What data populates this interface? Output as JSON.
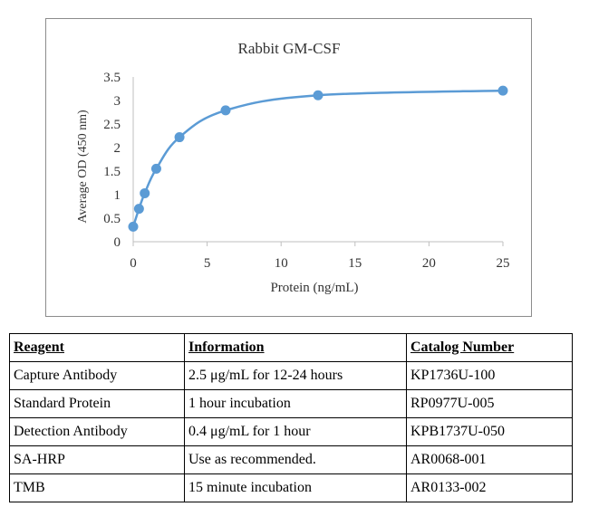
{
  "chart_data": {
    "type": "line",
    "title": "Rabbit GM-CSF",
    "xlabel": "Protein (ng/mL)",
    "ylabel": "Average OD (450 nm)",
    "xlim": [
      0,
      25
    ],
    "ylim": [
      0,
      3.5
    ],
    "x_ticks": [
      "0",
      "5",
      "10",
      "15",
      "20",
      "25"
    ],
    "y_ticks": [
      "0",
      "0.5",
      "1",
      "1.5",
      "2",
      "2.5",
      "3",
      "3.5"
    ],
    "grid": false,
    "legend": "none",
    "line_style": "smoothed",
    "series": [
      {
        "x": [
          0,
          0.39,
          0.78,
          1.56,
          3.13,
          6.25,
          12.5,
          25
        ],
        "y": [
          0.32,
          0.7,
          1.03,
          1.55,
          2.22,
          2.79,
          3.11,
          3.21
        ]
      }
    ],
    "colors": {
      "series": "#5b9bd5",
      "axis": "#bfbfbf",
      "text": "#333333"
    }
  },
  "table": {
    "headers": [
      "Reagent",
      "Information",
      "Catalog Number"
    ],
    "rows": [
      [
        "Capture Antibody",
        "2.5 μg/mL for 12-24 hours",
        "KP1736U-100"
      ],
      [
        "Standard Protein",
        "1 hour incubation",
        "RP0977U-005"
      ],
      [
        "Detection Antibody",
        "0.4 μg/mL for 1 hour",
        "KPB1737U-050"
      ],
      [
        "SA-HRP",
        "Use as recommended.",
        "AR0068-001"
      ],
      [
        "TMB",
        "15 minute incubation",
        "AR0133-002"
      ]
    ]
  }
}
